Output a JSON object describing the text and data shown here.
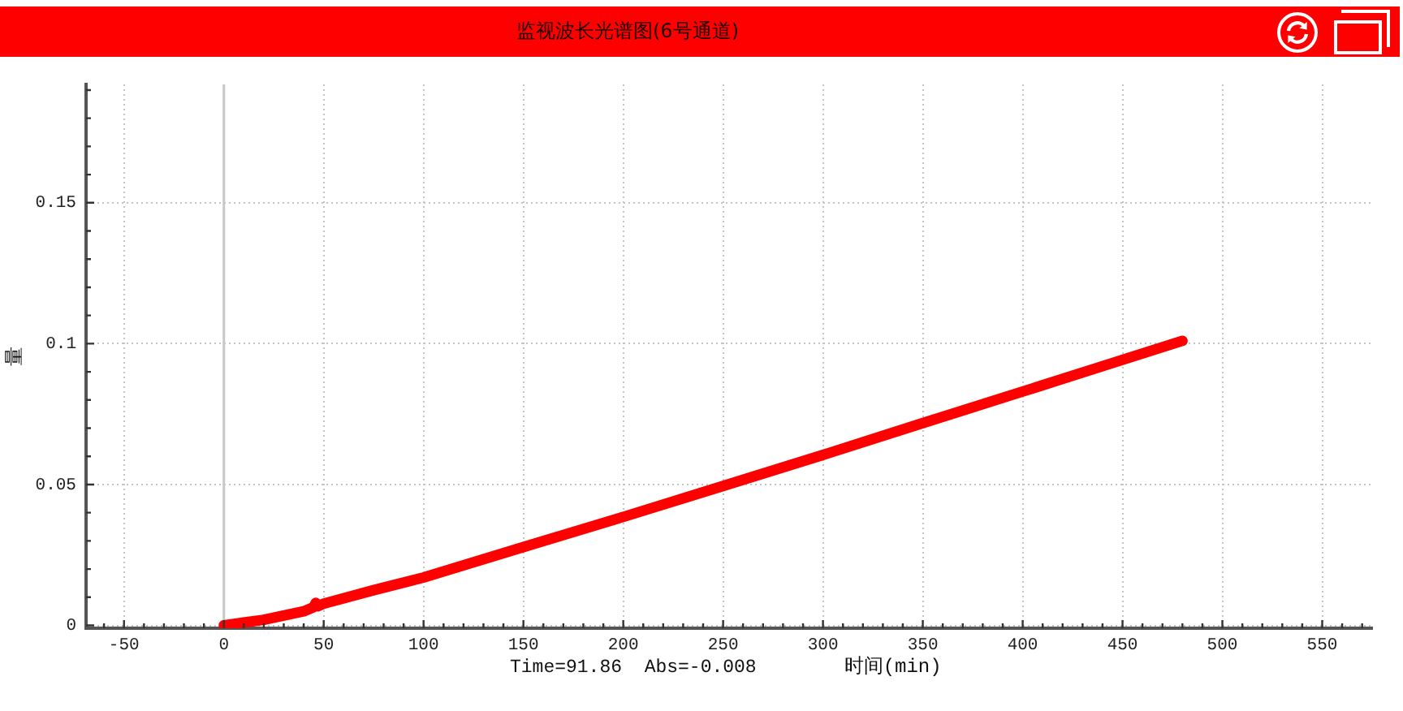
{
  "chart_data": {
    "type": "line",
    "title": "监视波长光谱图(6号通道)",
    "xlabel": "时间(min)",
    "ylabel": "量",
    "annotations": [
      "Time=91.86  Abs=-0.008"
    ],
    "x": [
      0,
      10,
      20,
      30,
      40,
      45,
      46,
      47,
      50,
      75,
      100,
      150,
      200,
      250,
      300,
      350,
      400,
      440,
      480
    ],
    "values": [
      0,
      0.001,
      0.002,
      0.0035,
      0.005,
      0.0065,
      0.008,
      0.0068,
      0.0077,
      0.0125,
      0.017,
      0.0278,
      0.0385,
      0.0495,
      0.0605,
      0.0718,
      0.083,
      0.092,
      0.101
    ],
    "color": "#ff0000",
    "marker": "none",
    "line_style": "solid",
    "grid": true,
    "ref_lines": [
      {
        "axis": "x",
        "value": 0,
        "color": "#c8c8c8"
      }
    ],
    "xlim": [
      -69,
      575
    ],
    "xticks": [
      {
        "value": -60,
        "label": null
      },
      -50,
      {
        "value": -40,
        "label": null
      },
      {
        "value": -30,
        "label": null
      },
      {
        "value": -20,
        "label": null
      },
      {
        "value": -10,
        "label": null
      },
      0,
      {
        "value": 10,
        "label": null
      },
      {
        "value": 20,
        "label": null
      },
      {
        "value": 30,
        "label": null
      },
      {
        "value": 40,
        "label": null
      },
      50,
      {
        "value": 60,
        "label": null
      },
      {
        "value": 70,
        "label": null
      },
      {
        "value": 80,
        "label": null
      },
      {
        "value": 90,
        "label": null
      },
      100,
      {
        "value": 110,
        "label": null
      },
      {
        "value": 120,
        "label": null
      },
      {
        "value": 130,
        "label": null
      },
      {
        "value": 140,
        "label": null
      },
      150,
      {
        "value": 160,
        "label": null
      },
      {
        "value": 170,
        "label": null
      },
      {
        "value": 180,
        "label": null
      },
      {
        "value": 190,
        "label": null
      },
      200,
      {
        "value": 210,
        "label": null
      },
      {
        "value": 220,
        "label": null
      },
      {
        "value": 230,
        "label": null
      },
      {
        "value": 240,
        "label": null
      },
      250,
      {
        "value": 260,
        "label": null
      },
      {
        "value": 270,
        "label": null
      },
      {
        "value": 280,
        "label": null
      },
      {
        "value": 290,
        "label": null
      },
      300,
      {
        "value": 310,
        "label": null
      },
      {
        "value": 320,
        "label": null
      },
      {
        "value": 330,
        "label": null
      },
      {
        "value": 340,
        "label": null
      },
      350,
      {
        "value": 360,
        "label": null
      },
      {
        "value": 370,
        "label": null
      },
      {
        "value": 380,
        "label": null
      },
      {
        "value": 390,
        "label": null
      },
      400,
      {
        "value": 410,
        "label": null
      },
      {
        "value": 420,
        "label": null
      },
      {
        "value": 430,
        "label": null
      },
      {
        "value": 440,
        "label": null
      },
      450,
      {
        "value": 460,
        "label": null
      },
      {
        "value": 470,
        "label": null
      },
      {
        "value": 480,
        "label": null
      },
      {
        "value": 490,
        "label": null
      },
      500,
      {
        "value": 510,
        "label": null
      },
      {
        "value": 520,
        "label": null
      },
      {
        "value": 530,
        "label": null
      },
      {
        "value": 540,
        "label": null
      },
      550,
      {
        "value": 560,
        "label": null
      },
      {
        "value": 570,
        "label": null
      }
    ],
    "ylim": [
      -0.001,
      0.192
    ],
    "yticks": [
      0,
      {
        "value": 0.01,
        "label": null
      },
      {
        "value": 0.02,
        "label": null
      },
      {
        "value": 0.03,
        "label": null
      },
      {
        "value": 0.04,
        "label": null
      },
      0.05,
      {
        "value": 0.06,
        "label": null
      },
      {
        "value": 0.07,
        "label": null
      },
      {
        "value": 0.08,
        "label": null
      },
      {
        "value": 0.09,
        "label": null
      },
      0.1,
      {
        "value": 0.11,
        "label": null
      },
      {
        "value": 0.12,
        "label": null
      },
      {
        "value": 0.13,
        "label": null
      },
      {
        "value": 0.14,
        "label": null
      },
      0.15,
      {
        "value": 0.16,
        "label": null
      },
      {
        "value": 0.17,
        "label": null
      },
      {
        "value": 0.18,
        "label": null
      },
      {
        "value": 0.19,
        "label": null
      }
    ]
  }
}
